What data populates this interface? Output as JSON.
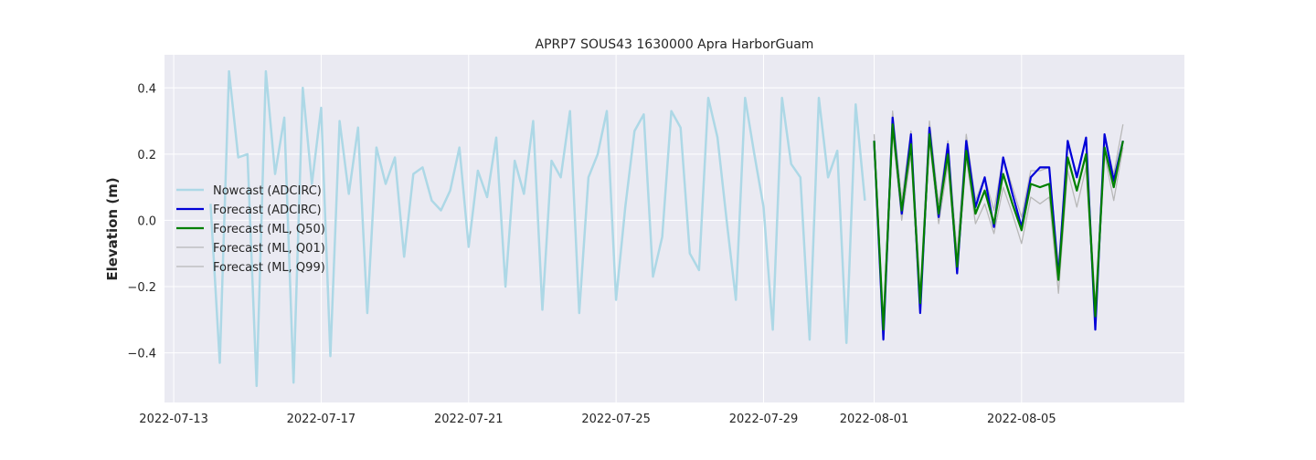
{
  "chart_data": {
    "type": "line",
    "title": "APRP7 SOUS43 1630000 Apra HarborGuam",
    "xlabel": "",
    "ylabel": "Elevation (m)",
    "x_tick_labels": [
      "2022-07-13",
      "2022-07-17",
      "2022-07-21",
      "2022-07-25",
      "2022-07-29",
      "2022-08-01",
      "2022-08-05"
    ],
    "x_ticks": [
      "2022-07-13",
      "2022-07-17",
      "2022-07-21",
      "2022-07-25",
      "2022-07-29",
      "2022-08-01",
      "2022-08-05"
    ],
    "y_ticks": [
      -0.4,
      -0.2,
      0.0,
      0.2,
      0.4
    ],
    "y_tick_labels": [
      "−0.4",
      "−0.2",
      "0.0",
      "0.2",
      "0.4"
    ],
    "xlim": [
      "2022-07-12T18:00",
      "2022-08-09T10:00"
    ],
    "ylim": [
      -0.55,
      0.5
    ],
    "grid": true,
    "legend_position": "center-left",
    "series": [
      {
        "name": "Nowcast (ADCIRC)",
        "color": "#add8e6",
        "linewidth": 2.5,
        "x": [
          "2022-07-14T00:00",
          "2022-07-14T06:00",
          "2022-07-14T12:00",
          "2022-07-14T18:00",
          "2022-07-15T00:00",
          "2022-07-15T06:00",
          "2022-07-15T12:00",
          "2022-07-15T18:00",
          "2022-07-16T00:00",
          "2022-07-16T06:00",
          "2022-07-16T12:00",
          "2022-07-16T18:00",
          "2022-07-17T00:00",
          "2022-07-17T06:00",
          "2022-07-17T12:00",
          "2022-07-17T18:00",
          "2022-07-18T00:00",
          "2022-07-18T06:00",
          "2022-07-18T12:00",
          "2022-07-18T18:00",
          "2022-07-19T00:00",
          "2022-07-19T06:00",
          "2022-07-19T12:00",
          "2022-07-19T18:00",
          "2022-07-20T00:00",
          "2022-07-20T06:00",
          "2022-07-20T12:00",
          "2022-07-20T18:00",
          "2022-07-21T00:00",
          "2022-07-21T06:00",
          "2022-07-21T12:00",
          "2022-07-21T18:00",
          "2022-07-22T00:00",
          "2022-07-22T06:00",
          "2022-07-22T12:00",
          "2022-07-22T18:00",
          "2022-07-23T00:00",
          "2022-07-23T06:00",
          "2022-07-23T12:00",
          "2022-07-23T18:00",
          "2022-07-24T00:00",
          "2022-07-24T06:00",
          "2022-07-24T12:00",
          "2022-07-24T18:00",
          "2022-07-25T00:00",
          "2022-07-25T06:00",
          "2022-07-25T12:00",
          "2022-07-25T18:00",
          "2022-07-26T00:00",
          "2022-07-26T06:00",
          "2022-07-26T12:00",
          "2022-07-26T18:00",
          "2022-07-27T00:00",
          "2022-07-27T06:00",
          "2022-07-27T12:00",
          "2022-07-27T18:00",
          "2022-07-28T00:00",
          "2022-07-28T06:00",
          "2022-07-28T12:00",
          "2022-07-28T18:00",
          "2022-07-29T00:00",
          "2022-07-29T06:00",
          "2022-07-29T12:00",
          "2022-07-29T18:00",
          "2022-07-30T00:00",
          "2022-07-30T06:00",
          "2022-07-30T12:00",
          "2022-07-30T18:00",
          "2022-07-31T00:00",
          "2022-07-31T06:00",
          "2022-07-31T12:00",
          "2022-07-31T18:00"
        ],
        "y": [
          0.05,
          -0.43,
          0.45,
          0.19,
          0.2,
          -0.5,
          0.45,
          0.14,
          0.31,
          -0.49,
          0.4,
          0.11,
          0.34,
          -0.41,
          0.3,
          0.08,
          0.28,
          -0.28,
          0.22,
          0.11,
          0.19,
          -0.11,
          0.14,
          0.16,
          0.06,
          0.03,
          0.09,
          0.22,
          -0.08,
          0.15,
          0.07,
          0.25,
          -0.2,
          0.18,
          0.08,
          0.3,
          -0.27,
          0.18,
          0.13,
          0.33,
          -0.28,
          0.13,
          0.2,
          0.33,
          -0.24,
          0.04,
          0.27,
          0.32,
          -0.17,
          -0.05,
          0.33,
          0.28,
          -0.1,
          -0.15,
          0.37,
          0.25,
          0.0,
          -0.24,
          0.37,
          0.2,
          0.04,
          -0.33,
          0.37,
          0.17,
          0.13,
          -0.36,
          0.37,
          0.13,
          0.21,
          -0.37,
          0.35,
          0.06
        ]
      },
      {
        "name": "Forecast (ADCIRC)",
        "color": "#0000d8",
        "linewidth": 2.2,
        "x": [
          "2022-08-01T00:00",
          "2022-08-01T06:00",
          "2022-08-01T12:00",
          "2022-08-01T18:00",
          "2022-08-02T00:00",
          "2022-08-02T06:00",
          "2022-08-02T12:00",
          "2022-08-02T18:00",
          "2022-08-03T00:00",
          "2022-08-03T06:00",
          "2022-08-03T12:00",
          "2022-08-03T18:00",
          "2022-08-04T00:00",
          "2022-08-04T06:00",
          "2022-08-04T12:00",
          "2022-08-04T18:00",
          "2022-08-05T00:00",
          "2022-08-05T06:00",
          "2022-08-05T12:00",
          "2022-08-05T18:00",
          "2022-08-06T00:00",
          "2022-08-06T06:00",
          "2022-08-06T12:00",
          "2022-08-06T18:00",
          "2022-08-07T00:00",
          "2022-08-07T06:00",
          "2022-08-07T12:00",
          "2022-08-07T18:00"
        ],
        "y": [
          0.24,
          -0.36,
          0.31,
          0.02,
          0.26,
          -0.28,
          0.28,
          0.01,
          0.23,
          -0.16,
          0.24,
          0.04,
          0.13,
          -0.02,
          0.19,
          0.08,
          -0.02,
          0.13,
          0.16,
          0.16,
          -0.17,
          0.24,
          0.13,
          0.25,
          -0.33,
          0.26,
          0.12,
          0.24
        ]
      },
      {
        "name": "Forecast (ML, Q50)",
        "color": "#008000",
        "linewidth": 2.2,
        "x": [
          "2022-08-01T00:00",
          "2022-08-01T06:00",
          "2022-08-01T12:00",
          "2022-08-01T18:00",
          "2022-08-02T00:00",
          "2022-08-02T06:00",
          "2022-08-02T12:00",
          "2022-08-02T18:00",
          "2022-08-03T00:00",
          "2022-08-03T06:00",
          "2022-08-03T12:00",
          "2022-08-03T18:00",
          "2022-08-04T00:00",
          "2022-08-04T06:00",
          "2022-08-04T12:00",
          "2022-08-04T18:00",
          "2022-08-05T00:00",
          "2022-08-05T06:00",
          "2022-08-05T12:00",
          "2022-08-05T18:00",
          "2022-08-06T00:00",
          "2022-08-06T06:00",
          "2022-08-06T12:00",
          "2022-08-06T18:00",
          "2022-08-07T00:00",
          "2022-08-07T06:00",
          "2022-08-07T12:00",
          "2022-08-07T18:00"
        ],
        "y": [
          0.24,
          -0.33,
          0.29,
          0.03,
          0.23,
          -0.25,
          0.26,
          0.02,
          0.2,
          -0.14,
          0.21,
          0.02,
          0.09,
          -0.01,
          0.14,
          0.05,
          -0.03,
          0.11,
          0.1,
          0.11,
          -0.18,
          0.19,
          0.09,
          0.2,
          -0.29,
          0.22,
          0.1,
          0.24
        ]
      },
      {
        "name": "Forecast (ML, Q01)",
        "color": "#b8b8b8",
        "linewidth": 1.3,
        "x": [
          "2022-08-01T00:00",
          "2022-08-01T06:00",
          "2022-08-01T12:00",
          "2022-08-01T18:00",
          "2022-08-02T00:00",
          "2022-08-02T06:00",
          "2022-08-02T12:00",
          "2022-08-02T18:00",
          "2022-08-03T00:00",
          "2022-08-03T06:00",
          "2022-08-03T12:00",
          "2022-08-03T18:00",
          "2022-08-04T00:00",
          "2022-08-04T06:00",
          "2022-08-04T12:00",
          "2022-08-04T18:00",
          "2022-08-05T00:00",
          "2022-08-05T06:00",
          "2022-08-05T12:00",
          "2022-08-05T18:00",
          "2022-08-06T00:00",
          "2022-08-06T06:00",
          "2022-08-06T12:00",
          "2022-08-06T18:00",
          "2022-08-07T00:00",
          "2022-08-07T06:00",
          "2022-08-07T12:00",
          "2022-08-07T18:00"
        ],
        "y": [
          0.22,
          -0.33,
          0.27,
          0.0,
          0.2,
          -0.27,
          0.24,
          -0.01,
          0.17,
          -0.16,
          0.19,
          -0.01,
          0.05,
          -0.04,
          0.1,
          0.02,
          -0.07,
          0.07,
          0.05,
          0.07,
          -0.22,
          0.15,
          0.04,
          0.16,
          -0.3,
          0.2,
          0.06,
          0.22
        ]
      },
      {
        "name": "Forecast (ML, Q99)",
        "color": "#b8b8b8",
        "linewidth": 1.3,
        "x": [
          "2022-08-01T00:00",
          "2022-08-01T06:00",
          "2022-08-01T12:00",
          "2022-08-01T18:00",
          "2022-08-02T00:00",
          "2022-08-02T06:00",
          "2022-08-02T12:00",
          "2022-08-02T18:00",
          "2022-08-03T00:00",
          "2022-08-03T06:00",
          "2022-08-03T12:00",
          "2022-08-03T18:00",
          "2022-08-04T00:00",
          "2022-08-04T06:00",
          "2022-08-04T12:00",
          "2022-08-04T18:00",
          "2022-08-05T00:00",
          "2022-08-05T06:00",
          "2022-08-05T12:00",
          "2022-08-05T18:00",
          "2022-08-06T00:00",
          "2022-08-06T06:00",
          "2022-08-06T12:00",
          "2022-08-06T18:00",
          "2022-08-07T00:00",
          "2022-08-07T06:00",
          "2022-08-07T12:00",
          "2022-08-07T18:00"
        ],
        "y": [
          0.26,
          -0.31,
          0.33,
          0.06,
          0.27,
          -0.22,
          0.3,
          0.05,
          0.24,
          -0.1,
          0.26,
          0.06,
          0.13,
          0.03,
          0.19,
          0.1,
          0.01,
          0.15,
          0.15,
          0.16,
          -0.14,
          0.23,
          0.14,
          0.24,
          -0.26,
          0.25,
          0.14,
          0.29
        ]
      }
    ]
  }
}
